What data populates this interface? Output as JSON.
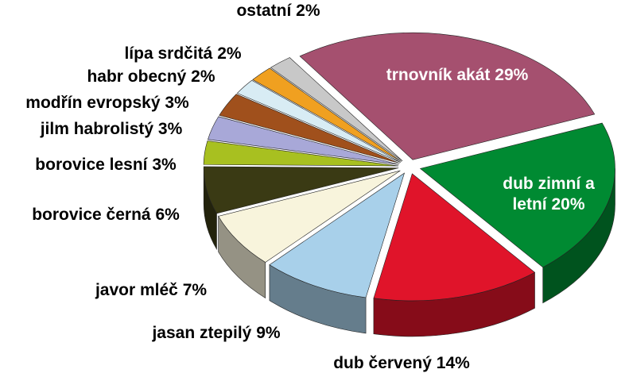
{
  "chart_data": {
    "type": "pie",
    "categories": [
      "trnovník akát",
      "dub zimní a letní",
      "dub červený",
      "jasan ztepilý",
      "javor mléč",
      "borovice černá",
      "borovice lesní",
      "jilm habrolistý",
      "modřín evropský",
      "habr obecný",
      "lípa srdčitá",
      "ostatní"
    ],
    "values": [
      29,
      20,
      14,
      9,
      7,
      6,
      3,
      3,
      3,
      2,
      2,
      2
    ],
    "value_labels": [
      "29%",
      "20%",
      "14%",
      "9%",
      "7%",
      "6%",
      "3%",
      "3%",
      "3%",
      "2%",
      "2%",
      "2%"
    ],
    "colors": [
      "#a5506f",
      "#008a32",
      "#e0142a",
      "#a8d0ea",
      "#f8f4dc",
      "#3a3a14",
      "#a8c020",
      "#a8a8d8",
      "#a0501c",
      "#d8ecf4",
      "#f0a020",
      "#c8c8c8"
    ]
  }
}
